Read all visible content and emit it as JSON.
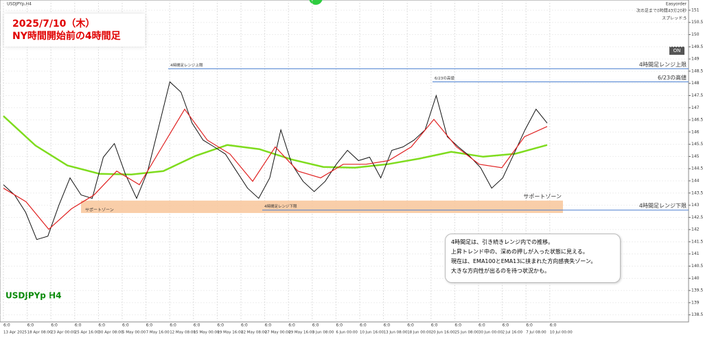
{
  "window": {
    "symbol": "USDJPYp,H4",
    "easyorder": "Easyorder",
    "countdown": "次の足まで0時間43分20秒",
    "spread": "スプレッド:5",
    "on_button": "ON",
    "watermark": "USDJPYp H4"
  },
  "header": {
    "date": "2025/7/10（木）",
    "subtitle": "NY時間開始前の4時間足"
  },
  "levels": [
    {
      "label": "4時間足レンジ上限",
      "value": 148.6,
      "color": "#4a7fd0"
    },
    {
      "label": "6/23の高値",
      "value": 148.06,
      "color": "#4a7fd0"
    },
    {
      "label": "4時間足レンジ下限",
      "value": 142.8,
      "color": "#4a7fd0"
    }
  ],
  "support_zone": {
    "label": "サポートゾーン",
    "range": [
      142.68,
      143.19
    ],
    "color": "#f8c9a0"
  },
  "price": {
    "color": "#111",
    "values": [
      143.84,
      143.42,
      142.71,
      141.59,
      141.73,
      143.0,
      144.12,
      143.42,
      143.28,
      144.97,
      145.53,
      144.26,
      143.28,
      144.4,
      146.23,
      148.06,
      147.64,
      146.37,
      145.67,
      145.39,
      145.1,
      144.4,
      143.7,
      143.28,
      144.12,
      146.09,
      144.68,
      143.98,
      143.56,
      143.98,
      144.68,
      145.25,
      144.83,
      144.97,
      144.12,
      145.25,
      145.39,
      145.67,
      146.09,
      147.5,
      145.81,
      145.39,
      145.02,
      144.54,
      143.7,
      144.12,
      145.1,
      146.09,
      146.94,
      146.37
    ]
  },
  "ema13": {
    "color": "#e02020",
    "values": [
      143.7,
      143.14,
      142.01,
      142.85,
      143.42,
      144.4,
      143.84,
      145.39,
      146.94,
      145.67,
      145.1,
      143.98,
      145.39,
      144.4,
      144.12,
      144.68,
      144.68,
      144.83,
      145.39,
      146.52,
      145.39,
      144.68,
      144.54,
      145.81,
      146.23
    ]
  },
  "ema100": {
    "color": "#7fdc1e",
    "values": [
      146.66,
      145.45,
      144.63,
      144.29,
      144.26,
      144.4,
      145.02,
      145.47,
      145.3,
      144.88,
      144.57,
      144.54,
      144.68,
      144.91,
      145.19,
      144.99,
      145.11,
      145.47
    ]
  },
  "ylim": [
    138.21,
    151.42
  ],
  "yticks": [
    138.5,
    139,
    139.5,
    140,
    140.5,
    141,
    141.5,
    142,
    142.5,
    143,
    143.5,
    144,
    144.5,
    145,
    145.5,
    146,
    146.5,
    147,
    147.5,
    148,
    148.5,
    149,
    149.5,
    150,
    150.5,
    151
  ],
  "hour_label": "6:0",
  "dates": [
    "13 Apr 2025",
    "18 Apr 08:00",
    "23 Apr 00:00",
    "25 Apr 16:00",
    "30 Apr 08:00",
    "5 May 00:00",
    "7 May 16:00",
    "12 May 08:00",
    "15 May 00:00",
    "19 May 16:00",
    "22 May 08:00",
    "27 May 00:00",
    "29 May 16:00",
    "3 Jun 08:00",
    "6 Jun 00:00",
    "10 Jun 16:00",
    "13 Jun 08:00",
    "18 Jun 00:00",
    "20 Jun 16:00",
    "25 Jun 08:00",
    "30 Jun 00:00",
    "2 Jul 16:00",
    "7 Jul 08:00",
    "10 Jul 00:00"
  ],
  "note": {
    "lines": [
      "4時間足は、引き続きレンジ内での推移。",
      "上昇トレンド中の、深めの押しが入った状態に見える。",
      "現在は、EMA100とEMA13に挟まれた方向感喪失ゾーン。",
      "大きな方向性が出るのを待つ状況かも。"
    ]
  }
}
